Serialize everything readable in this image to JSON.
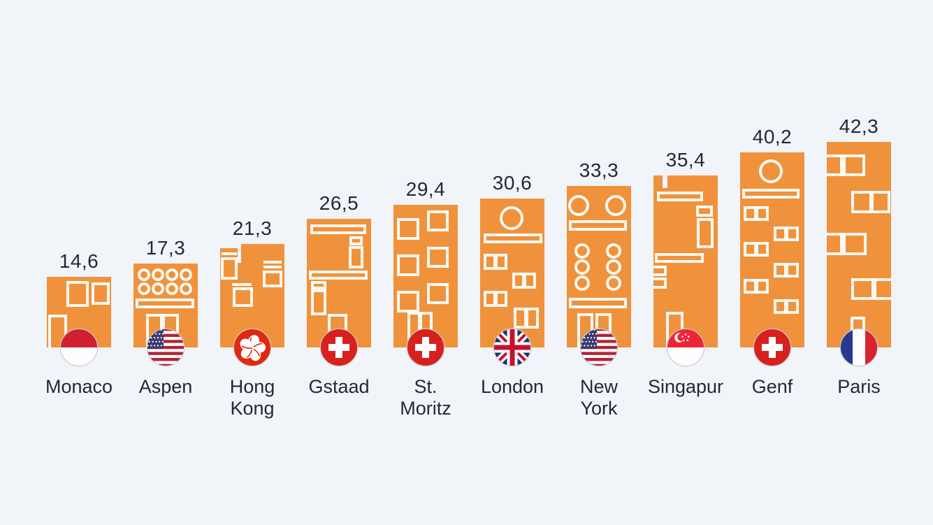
{
  "colors": {
    "background": "#F1F4F8",
    "bar_orange": "#F0923C",
    "window_line": "#FAF8F1",
    "text": "#1F2937",
    "flag_ring": "#C7CCD3"
  },
  "bars": [
    {
      "city": "Monaco",
      "city_label": "Monaco",
      "value": 14.6,
      "value_label": "14,6",
      "flag": "monaco",
      "building": "monaco"
    },
    {
      "city": "Aspen",
      "city_label": "Aspen",
      "value": 17.3,
      "value_label": "17,3",
      "flag": "usa",
      "building": "aspen"
    },
    {
      "city": "Hong Kong",
      "city_label": "Hong\nKong",
      "value": 21.3,
      "value_label": "21,3",
      "flag": "hongkong",
      "building": "hongkong"
    },
    {
      "city": "Gstaad",
      "city_label": "Gstaad",
      "value": 26.5,
      "value_label": "26,5",
      "flag": "switzerland",
      "building": "gstaad"
    },
    {
      "city": "St. Moritz",
      "city_label": "St.\nMoritz",
      "value": 29.4,
      "value_label": "29,4",
      "flag": "switzerland",
      "building": "stmoritz"
    },
    {
      "city": "London",
      "city_label": "London",
      "value": 30.6,
      "value_label": "30,6",
      "flag": "uk",
      "building": "london"
    },
    {
      "city": "New York",
      "city_label": "New\nYork",
      "value": 33.3,
      "value_label": "33,3",
      "flag": "usa",
      "building": "newyork"
    },
    {
      "city": "Singapur",
      "city_label": "Singapur",
      "value": 35.4,
      "value_label": "35,4",
      "flag": "singapore",
      "building": "singapur"
    },
    {
      "city": "Genf",
      "city_label": "Genf",
      "value": 40.2,
      "value_label": "40,2",
      "flag": "switzerland",
      "building": "genf"
    },
    {
      "city": "Paris",
      "city_label": "Paris",
      "value": 42.3,
      "value_label": "42,3",
      "flag": "france",
      "building": "paris"
    }
  ],
  "chart_data": {
    "type": "bar",
    "title": "",
    "categories": [
      "Monaco",
      "Aspen",
      "Hong Kong",
      "Gstaad",
      "St. Moritz",
      "London",
      "New York",
      "Singapur",
      "Genf",
      "Paris"
    ],
    "values": [
      14.6,
      17.3,
      21.3,
      26.5,
      29.4,
      30.6,
      33.3,
      35.4,
      40.2,
      42.3
    ],
    "value_labels": [
      "14,6",
      "17,3",
      "21,3",
      "26,5",
      "29,4",
      "30,6",
      "33,3",
      "35,4",
      "40,2",
      "42,3"
    ],
    "flags": [
      "Monaco",
      "USA",
      "Hong Kong",
      "Switzerland",
      "Switzerland",
      "UK",
      "USA",
      "Singapore",
      "Switzerland",
      "France"
    ],
    "xlabel": "",
    "ylabel": "",
    "ylim": [
      0,
      45
    ],
    "grid": false,
    "axes": "none",
    "legend": "none",
    "style": "bars drawn as orange buildings with white window outlines, circular country flag at base of each bar, value labels above bars, decimal comma (German locale)"
  }
}
